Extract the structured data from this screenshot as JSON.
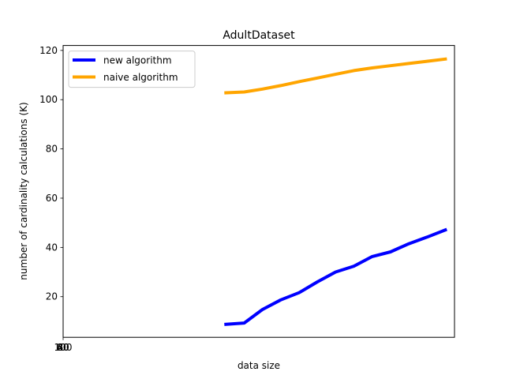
{
  "chart_data": {
    "type": "line",
    "title": "AdultDataset",
    "xlabel": "data size",
    "ylabel": "number of cardinality calculations (K)",
    "x": [
      1000,
      2000,
      3000,
      4000,
      5000,
      6000,
      7000,
      8000,
      9000,
      10000,
      11000,
      12000,
      13000
    ],
    "x_tick_labels": [
      "100",
      "80",
      "60",
      "40",
      "20",
      "0"
    ],
    "y_ticks": [
      20,
      40,
      60,
      80,
      100,
      120
    ],
    "xlim": [
      -7900,
      13500
    ],
    "ylim": [
      3.5,
      122
    ],
    "grid": false,
    "legend_position": "top-left",
    "series": [
      {
        "name": "new algorithm",
        "color": "#0000ff",
        "values": [
          8.8,
          9.3,
          14.8,
          18.7,
          21.6,
          26,
          30,
          32.4,
          36.3,
          38.2,
          41.5,
          44.2,
          47.1
        ]
      },
      {
        "name": "naive algorithm",
        "color": "#ffa500",
        "values": [
          102.8,
          103.1,
          104.3,
          105.7,
          107.3,
          108.8,
          110.3,
          111.8,
          112.9,
          113.8,
          114.7,
          115.6,
          116.5
        ]
      }
    ]
  }
}
